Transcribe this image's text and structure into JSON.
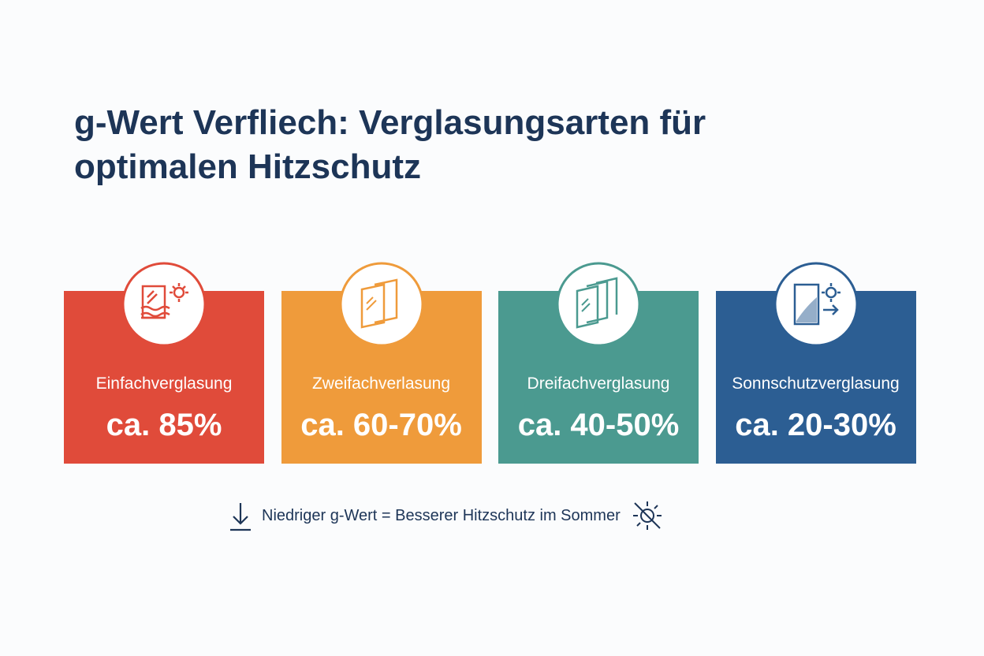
{
  "title": "g-Wert Verfliech: Verglasungsarten für optimalen Hitzschutz",
  "cards": [
    {
      "label": "Einfachverglasung",
      "value": "ca. 85%",
      "color": "#e04b3a"
    },
    {
      "label": "Zweifachverlasung",
      "value": "ca. 60-70%",
      "color": "#ef9b3b"
    },
    {
      "label": "Dreifachverglasung",
      "value": "ca. 40-50%",
      "color": "#4b9a90"
    },
    {
      "label": "Sonnschutzverglasung",
      "value": "ca. 20-30%",
      "color": "#2c5e93"
    }
  ],
  "footer": "Niedriger g-Wert = Besserer Hitzschutz im Sommer"
}
